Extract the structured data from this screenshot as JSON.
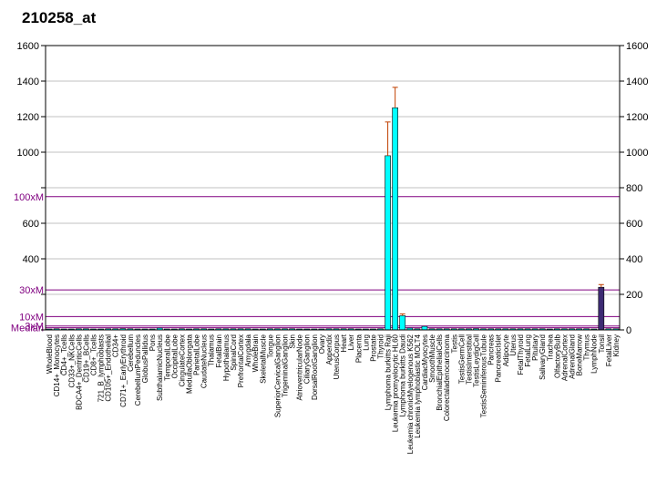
{
  "chart_data": {
    "type": "bar",
    "title": "210258_at",
    "xlabel": "",
    "ylabel": "",
    "ylim": [
      0,
      1600
    ],
    "y_ticks": [
      0,
      200,
      400,
      600,
      800,
      1000,
      1200,
      1400,
      1600
    ],
    "left_tick_labels": [
      "",
      "",
      "400",
      "600",
      "",
      "1000",
      "1200",
      "1400",
      "1600"
    ],
    "right_tick_labels": [
      "0",
      "200",
      "400",
      "600",
      "800",
      "1000",
      "1200",
      "1400",
      "1600"
    ],
    "grid": true,
    "bar_color": "#00ffff",
    "highlight_color": "#3d2b73",
    "error_color": "#c04000",
    "marker_color": "#800080",
    "median_value": 12,
    "marker_lines": [
      {
        "label": "100xM",
        "value": 750
      },
      {
        "label": "30xM",
        "value": 225
      },
      {
        "label": "10xM",
        "value": 75
      },
      {
        "label": "3xM",
        "value": 22
      },
      {
        "label": "Median",
        "value": 12
      }
    ],
    "categories": [
      "WholeBlood",
      "CD14+_Monocytes",
      "CD4+_Tcells",
      "CD33+_NKCells",
      "BDCA4+_DentriticCells",
      "CD19+_BCells",
      "CD8+_Tcells",
      "721_B_lymphoblasts",
      "CD105+_Endothelial",
      "CD34+",
      "CD71+_EarlyErythroid",
      "Cerebellum",
      "CerebellumPeduncles",
      "GlobusPallidus",
      "Pons",
      "SubthalamicNucleus",
      "TemporalLobe",
      "OccipitalLobe",
      "CingulateCortex",
      "MedullaOblongata",
      "ParietalLobe",
      "CaudateNucleus",
      "Thalamus",
      "FetalBrain",
      "Hypothalamus",
      "SpinalCord",
      "PrefrontalCortex",
      "Amygdala",
      "WholeBrain",
      "SkeletalMuscle",
      "Tongue",
      "SuperiorCervicalGanglion",
      "TrigeminalGanglion",
      "Skin",
      "AtrioventricularNode",
      "CiliaryGanglion",
      "DorsalRootGanglion",
      "Ovary",
      "Appendix",
      "UterusCorpus",
      "Heart",
      "Liver",
      "Placenta",
      "Lung",
      "Prostate",
      "Thyroid",
      "Lymphoma burkitts Raji",
      "Leukemia promyelocytic HL60",
      "Lymphoma burkitts Daudi",
      "Leukemia chronicMyelogenous K562",
      "Leukemia lymphoblastic MOLT4",
      "CardiacMyocytes",
      "SmoothMuscle",
      "BronchialEpithelialCells",
      "Colorectaladenocarcinoma",
      "Testis",
      "TestisGermCell",
      "TestisInterstitial",
      "TestisLeydigCell",
      "TestisSeminiferousTubule",
      "Pancreas",
      "PancreaticIslet",
      "Adipocyte",
      "Uterus",
      "FetalThyroid",
      "FetalLung",
      "Pituitary",
      "SalivaryGland",
      "Trachea",
      "OlfactoryBulb",
      "AdrenalCortex",
      "AdrenalGland",
      "BoneMarrow",
      "Thymus",
      "LymphNode",
      "Tonsil",
      "FetalLiver",
      "Kidney"
    ],
    "values": [
      5,
      6,
      5,
      5,
      6,
      6,
      5,
      5,
      6,
      6,
      7,
      6,
      5,
      5,
      5,
      10,
      5,
      5,
      6,
      5,
      6,
      6,
      5,
      6,
      6,
      6,
      6,
      6,
      5,
      5,
      6,
      6,
      6,
      6,
      5,
      5,
      5,
      5,
      6,
      6,
      6,
      6,
      5,
      5,
      5,
      6,
      980,
      1250,
      80,
      10,
      6,
      20,
      6,
      6,
      6,
      6,
      6,
      6,
      7,
      6,
      6,
      6,
      6,
      6,
      6,
      6,
      6,
      6,
      5,
      6,
      6,
      6,
      6,
      6,
      5,
      240,
      6,
      6
    ],
    "errors": [
      0,
      0,
      0,
      0,
      0,
      0,
      0,
      0,
      0,
      0,
      0,
      0,
      0,
      0,
      0,
      0,
      0,
      0,
      0,
      0,
      0,
      0,
      0,
      0,
      0,
      0,
      0,
      0,
      0,
      0,
      0,
      0,
      0,
      0,
      0,
      0,
      0,
      0,
      0,
      0,
      0,
      0,
      0,
      0,
      0,
      0,
      190,
      115,
      10,
      0,
      0,
      0,
      0,
      0,
      0,
      0,
      0,
      0,
      0,
      0,
      0,
      0,
      0,
      0,
      0,
      0,
      0,
      0,
      0,
      0,
      0,
      0,
      0,
      0,
      0,
      15,
      0,
      0
    ],
    "highlight_indices": [
      75
    ]
  }
}
